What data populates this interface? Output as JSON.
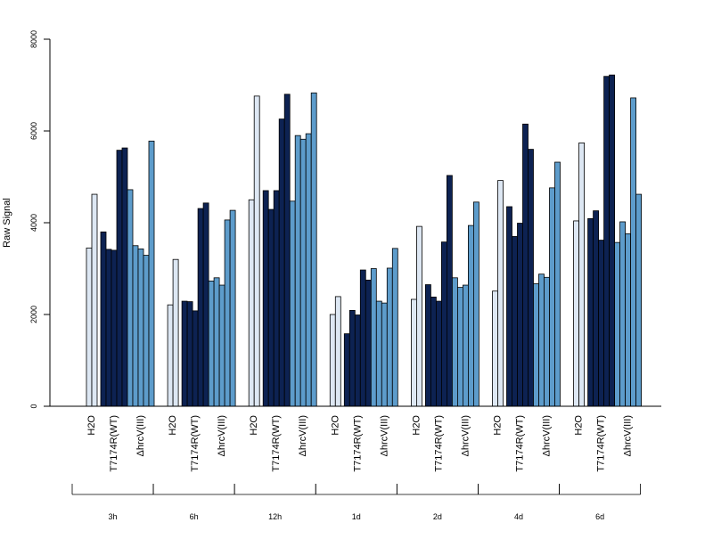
{
  "chart_data": {
    "type": "bar",
    "ylabel": "Raw Signal",
    "ylim": [
      0,
      8000
    ],
    "yticks": [
      0,
      2000,
      4000,
      6000,
      8000
    ],
    "colors": {
      "H2O": "#dde7f3",
      "T7174R(WT)": "#0d2252",
      "ΔhrcV(III)": "#5d9ccb",
      "edge": "#000000"
    },
    "timepoints": [
      {
        "label": "3h",
        "groups": [
          {
            "label": "H2O",
            "values": [
              3450,
              4620
            ]
          },
          {
            "label": "T7174R(WT)",
            "values": [
              3800,
              3420,
              3400,
              5580,
              5630
            ]
          },
          {
            "label": "ΔhrcV(III)",
            "values": [
              4720,
              3500,
              3430,
              3290,
              5780
            ]
          }
        ]
      },
      {
        "label": "6h",
        "groups": [
          {
            "label": "H2O",
            "values": [
              2210,
              3200
            ]
          },
          {
            "label": "T7174R(WT)",
            "values": [
              2290,
              2280,
              2080,
              4310,
              4430
            ]
          },
          {
            "label": "ΔhrcV(III)",
            "values": [
              2730,
              2800,
              2640,
              4060,
              4270
            ]
          }
        ]
      },
      {
        "label": "12h",
        "groups": [
          {
            "label": "H2O",
            "values": [
              4500,
              6760
            ]
          },
          {
            "label": "T7174R(WT)",
            "values": [
              4700,
              4290,
              4700,
              6260,
              6800
            ]
          },
          {
            "label": "ΔhrcV(III)",
            "values": [
              4470,
              5900,
              5820,
              5940,
              6830
            ]
          }
        ]
      },
      {
        "label": "1d",
        "groups": [
          {
            "label": "H2O",
            "values": [
              2000,
              2390
            ]
          },
          {
            "label": "T7174R(WT)",
            "values": [
              1580,
              2090,
              1990,
              2970,
              2750
            ]
          },
          {
            "label": "ΔhrcV(III)",
            "values": [
              3000,
              2290,
              2250,
              3010,
              3440
            ]
          }
        ]
      },
      {
        "label": "2d",
        "groups": [
          {
            "label": "H2O",
            "values": [
              2330,
              3920
            ]
          },
          {
            "label": "T7174R(WT)",
            "values": [
              2650,
              2380,
              2290,
              3580,
              5030
            ]
          },
          {
            "label": "ΔhrcV(III)",
            "values": [
              2800,
              2590,
              2640,
              3940,
              4450
            ]
          }
        ]
      },
      {
        "label": "4d",
        "groups": [
          {
            "label": "H2O",
            "values": [
              2510,
              4920
            ]
          },
          {
            "label": "T7174R(WT)",
            "values": [
              4350,
              3700,
              3990,
              6150,
              5600
            ]
          },
          {
            "label": "ΔhrcV(III)",
            "values": [
              2670,
              2880,
              2810,
              4760,
              5320
            ]
          }
        ]
      },
      {
        "label": "6d",
        "groups": [
          {
            "label": "H2O",
            "values": [
              4040,
              5740
            ]
          },
          {
            "label": "T7174R(WT)",
            "values": [
              4090,
              4260,
              3620,
              7190,
              7220
            ]
          },
          {
            "label": "ΔhrcV(III)",
            "values": [
              3570,
              4020,
              3760,
              6720,
              4620
            ]
          }
        ]
      }
    ]
  }
}
